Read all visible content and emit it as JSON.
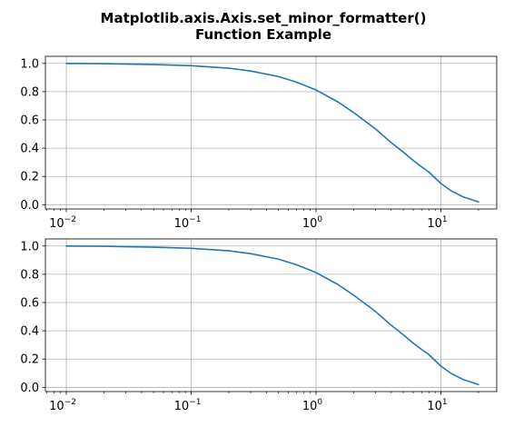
{
  "chart_data": {
    "title": [
      "Matplotlib.axis.Axis.set_minor_formatter()",
      "Function Example"
    ],
    "subplots": [
      {
        "type": "line",
        "xscale": "log",
        "xlim": [
          0.0068,
          28
        ],
        "ylim": [
          -0.03,
          1.05
        ],
        "xticks": [
          {
            "base": "10",
            "exp": "−2",
            "value": 0.01
          },
          {
            "base": "10",
            "exp": "−1",
            "value": 0.1
          },
          {
            "base": "10",
            "exp": "0",
            "value": 1
          },
          {
            "base": "10",
            "exp": "1",
            "value": 10
          }
        ],
        "yticks": [
          "0.0",
          "0.2",
          "0.4",
          "0.6",
          "0.8",
          "1.0"
        ],
        "grid": true,
        "series": [
          {
            "color": "#1f77b4",
            "x": [
              0.01,
              0.02,
              0.05,
              0.1,
              0.2,
              0.3,
              0.5,
              0.7,
              1,
              1.5,
              2,
              3,
              4,
              5,
              6,
              7,
              8,
              10,
              12,
              15,
              20
            ],
            "y": [
              1.0,
              0.998,
              0.992,
              0.984,
              0.966,
              0.946,
              0.907,
              0.867,
              0.812,
              0.727,
              0.652,
              0.536,
              0.439,
              0.372,
              0.313,
              0.268,
              0.232,
              0.15,
              0.1,
              0.056,
              0.02
            ]
          }
        ]
      },
      {
        "type": "line",
        "xscale": "log",
        "xlim": [
          0.0068,
          28
        ],
        "ylim": [
          -0.03,
          1.05
        ],
        "xticks": [
          {
            "base": "10",
            "exp": "−2",
            "value": 0.01
          },
          {
            "base": "10",
            "exp": "−1",
            "value": 0.1
          },
          {
            "base": "10",
            "exp": "0",
            "value": 1
          },
          {
            "base": "10",
            "exp": "1",
            "value": 10
          }
        ],
        "yticks": [
          "0.0",
          "0.2",
          "0.4",
          "0.6",
          "0.8",
          "1.0"
        ],
        "grid": true,
        "series": [
          {
            "color": "#1f77b4",
            "x": [
              0.01,
              0.02,
              0.05,
              0.1,
              0.2,
              0.3,
              0.5,
              0.7,
              1,
              1.5,
              2,
              3,
              4,
              5,
              6,
              7,
              8,
              10,
              12,
              15,
              20
            ],
            "y": [
              1.0,
              0.998,
              0.992,
              0.984,
              0.966,
              0.946,
              0.907,
              0.867,
              0.812,
              0.727,
              0.652,
              0.536,
              0.439,
              0.372,
              0.313,
              0.268,
              0.232,
              0.15,
              0.1,
              0.056,
              0.02
            ]
          }
        ]
      }
    ]
  }
}
